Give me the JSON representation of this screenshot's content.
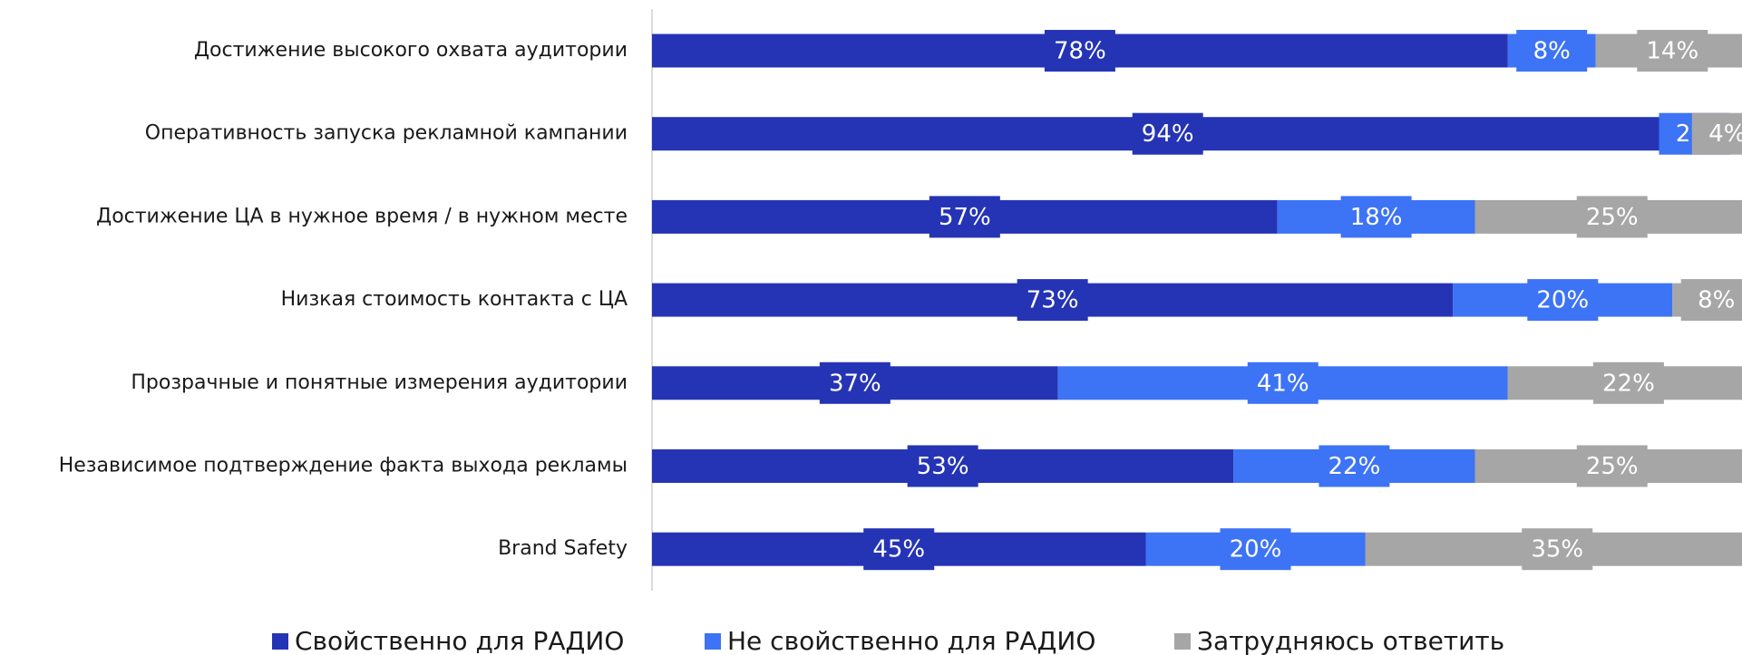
{
  "chart_data": {
    "type": "stacked-bar-horizontal",
    "categories": [
      "Достижение высокого охвата аудитории",
      "Оперативность запуска рекламной кампании",
      "Достижение ЦА в нужное время / в нужном месте",
      "Низкая стоимость контакта с ЦА",
      "Прозрачные и понятные измерения аудитории",
      "Независимое подтверждение факта выхода рекламы",
      "Brand Safety"
    ],
    "series": [
      {
        "name": "Свойственно для РАДИО",
        "color": "#2534b5",
        "values": [
          78,
          94,
          57,
          73,
          37,
          53,
          45
        ],
        "value_labels": [
          "78%",
          "94%",
          "57%",
          "73%",
          "37%",
          "53%",
          "45%"
        ]
      },
      {
        "name": "Не свойственно для РАДИО",
        "color": "#3d73f5",
        "values": [
          8,
          2,
          18,
          20,
          41,
          22,
          20
        ],
        "value_labels": [
          "8%",
          "2%",
          "18%",
          "20%",
          "41%",
          "22%",
          "20%"
        ]
      },
      {
        "name": "Затрудняюсь ответить",
        "color": "#a6a6a6",
        "values": [
          14,
          4,
          25,
          8,
          22,
          25,
          35
        ],
        "value_labels": [
          "14%",
          "4%",
          "25%",
          "8%",
          "22%",
          "25%",
          "35%"
        ]
      }
    ],
    "legend": "bottom"
  }
}
